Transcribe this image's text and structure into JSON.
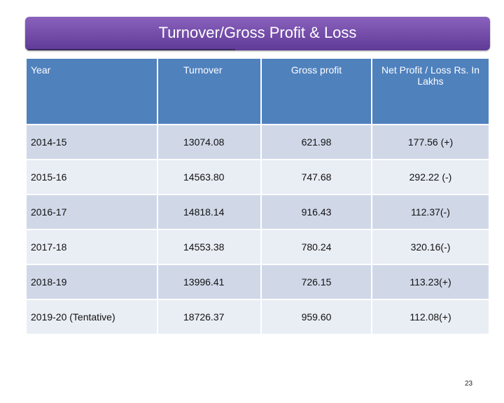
{
  "slide": {
    "title": "Turnover/Gross  Profit & Loss",
    "page_number": "23"
  },
  "table": {
    "headers": [
      "Year",
      "Turnover",
      "Gross profit",
      "Net Profit / Loss Rs. In Lakhs"
    ],
    "rows": [
      [
        "2014-15",
        "13074.08",
        "621.98",
        "177.56 (+)"
      ],
      [
        "2015-16",
        "14563.80",
        "747.68",
        "292.22 (-)"
      ],
      [
        "2016-17",
        "14818.14",
        "916.43",
        "112.37(-)"
      ],
      [
        "2017-18",
        "14553.38",
        "780.24",
        "320.16(-)"
      ],
      [
        "2018-19",
        "13996.41",
        "726.15",
        "113.23(+)"
      ],
      [
        "2019-20 (Tentative)",
        "18726.37",
        "959.60",
        "112.08(+)"
      ]
    ]
  },
  "colors": {
    "title_bar": "#7048a8",
    "header_bg": "#4f81bd",
    "row_bg": "#d0d8e8",
    "row_alt_bg": "#e9edf4"
  }
}
